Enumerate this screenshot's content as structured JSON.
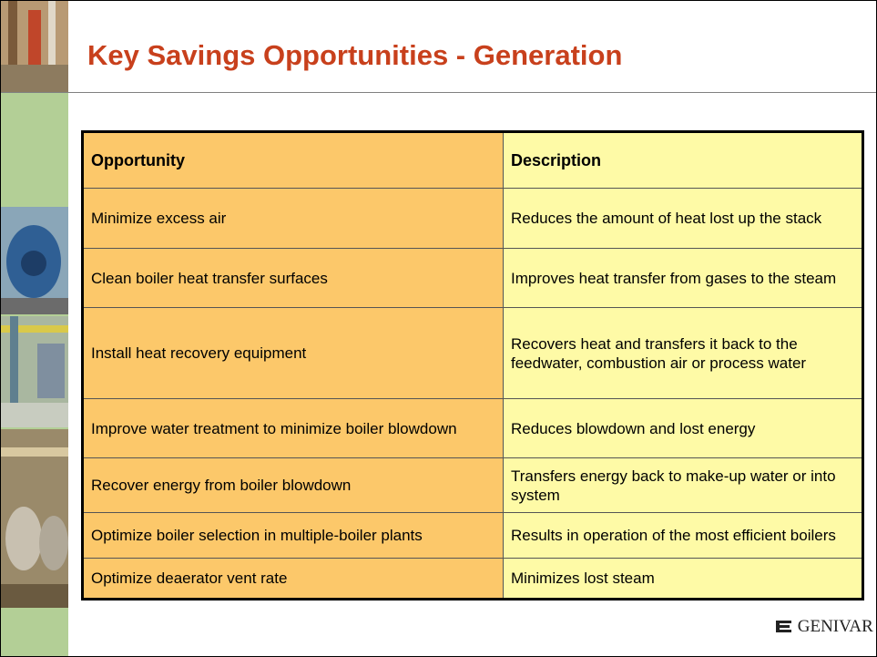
{
  "header": {
    "title": "Key Savings Opportunities - Generation"
  },
  "table": {
    "columns": [
      "Opportunity",
      "Description"
    ],
    "rows": [
      [
        "Minimize excess air",
        "Reduces the amount of heat lost up the stack"
      ],
      [
        "Clean boiler heat transfer surfaces",
        "Improves heat transfer from gases to the steam"
      ],
      [
        "Install heat recovery equipment",
        "Recovers heat and transfers it back to the feedwater, combustion air or process water"
      ],
      [
        "Improve water treatment to minimize boiler blowdown",
        "Reduces blowdown and lost energy"
      ],
      [
        "Recover energy from boiler blowdown",
        "Transfers energy back to make-up water or into system"
      ],
      [
        "Optimize boiler selection in multiple-boiler plants",
        "Results in operation of the most efficient boilers"
      ],
      [
        "Optimize deaerator vent rate",
        "Minimizes lost steam"
      ]
    ]
  },
  "footer": {
    "logo": "GENIVAR"
  }
}
